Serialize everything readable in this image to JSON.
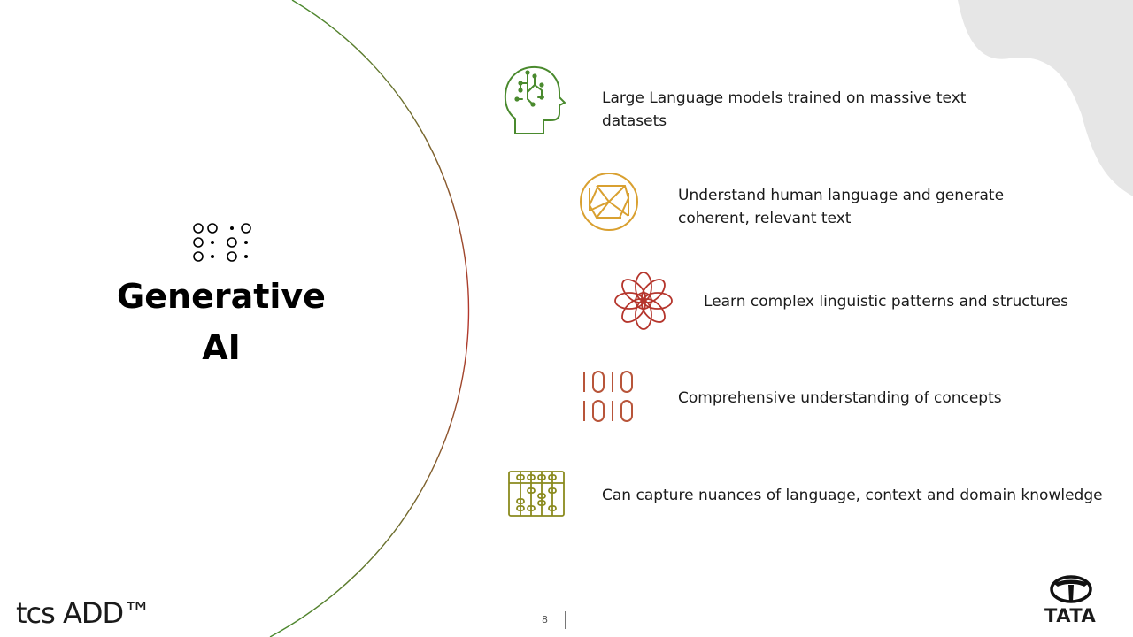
{
  "slide": {
    "title_line1": "Generative",
    "title_line2": "AI",
    "features": [
      {
        "text": "Large Language models trained on massive text datasets",
        "icon": "brain-circuit-icon",
        "color": "#4a8a2e"
      },
      {
        "text": "Understand human language and generate coherent, relevant text",
        "icon": "aperture-icon",
        "color": "#d9a030"
      },
      {
        "text": "Learn complex linguistic patterns and structures",
        "icon": "lotus-pattern-icon",
        "color": "#b5352c"
      },
      {
        "text": "Comprehensive  understanding of concepts",
        "icon": "binary-code-icon",
        "color": "#b8553a"
      },
      {
        "text": "Can capture nuances of language, context and domain knowledge",
        "icon": "abacus-icon",
        "color": "#8a8a1e"
      }
    ],
    "page_number": "8"
  },
  "brand": {
    "left_logo": "tcs ADD™",
    "right_logo": "TATA"
  },
  "colors": {
    "arc_start": "#4a8a2e",
    "arc_mid": "#b5352c",
    "blob": "#e6e6e6"
  }
}
